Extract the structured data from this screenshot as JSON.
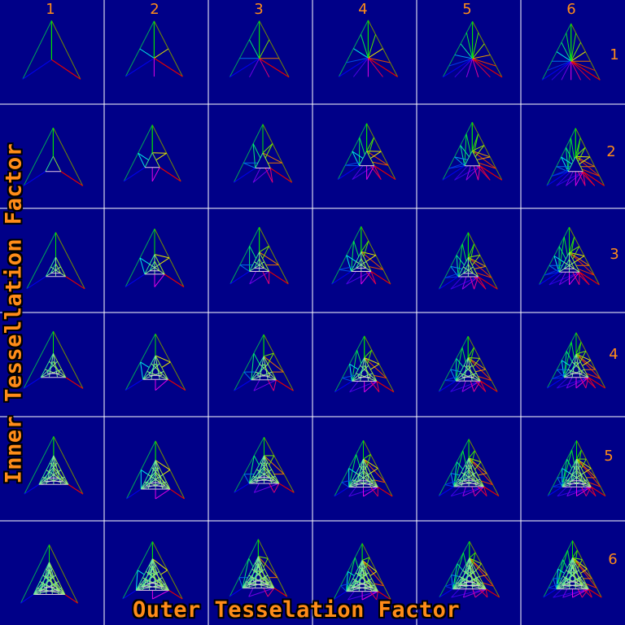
{
  "figure": {
    "x_axis_title": "Outer Tesselation Factor",
    "y_axis_title": "Inner Tessellation Factor",
    "outer_factors": [
      "1",
      "2",
      "3",
      "4",
      "5",
      "6"
    ],
    "inner_factors": [
      "1",
      "2",
      "3",
      "4",
      "5",
      "6"
    ]
  },
  "colors": {
    "background": "#000088",
    "grid_lines": "#ffffff",
    "label_text": "#ff8c19",
    "title_outline": "#000000",
    "apex_vertex_color": "#00ff00",
    "left_vertex_color": "#0000ff",
    "right_vertex_color": "#ff0000"
  },
  "cell_content": "wireframe triangle tessellated by inner factor (row) and outer factor (column)"
}
